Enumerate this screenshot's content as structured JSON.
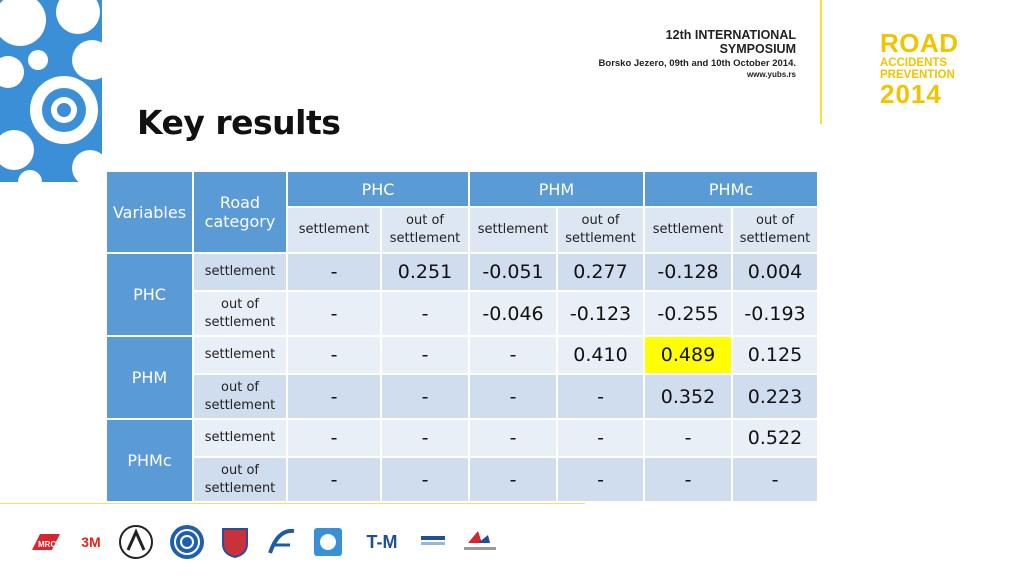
{
  "header": {
    "symposium_line1": "12th INTERNATIONAL",
    "symposium_line2": "SYMPOSIUM",
    "symposium_line3": "Borsko Jezero, 09th and 10th October 2014.",
    "symposium_line4": "www.yubs.rs",
    "brand_line1": "ROAD",
    "brand_line2": "ACCIDENTS",
    "brand_line3": "PREVENTION",
    "brand_line4": "2014"
  },
  "title": "Key results",
  "table": {
    "col_variables": "Variables",
    "col_road_category": "Road category",
    "groups": [
      "PHC",
      "PHM",
      "PHMc"
    ],
    "subheaders": [
      "settlement",
      "out of settlement",
      "settlement",
      "out of settlement",
      "settlement",
      "out of settlement"
    ],
    "rows": [
      {
        "variable": "PHC",
        "category": "settlement",
        "values": [
          "-",
          "0.251",
          "-0.051",
          "0.277",
          "-0.128",
          "0.004"
        ]
      },
      {
        "variable": "",
        "category": "out of settlement",
        "values": [
          "-",
          "-",
          "-0.046",
          "-0.123",
          "-0.255",
          "-0.193"
        ]
      },
      {
        "variable": "PHM",
        "category": "settlement",
        "values": [
          "-",
          "-",
          "-",
          "0.410",
          "0.489",
          "0.125"
        ]
      },
      {
        "variable": "",
        "category": "out of settlement",
        "values": [
          "-",
          "-",
          "-",
          "-",
          "0.352",
          "0.223"
        ]
      },
      {
        "variable": "PHMc",
        "category": "settlement",
        "values": [
          "-",
          "-",
          "-",
          "-",
          "-",
          "0.522"
        ]
      },
      {
        "variable": "",
        "category": "out of settlement",
        "values": [
          "-",
          "-",
          "-",
          "-",
          "-",
          "-"
        ]
      }
    ],
    "highlight_color": "#ffff00"
  },
  "logos": [
    "MRC",
    "3M",
    "sponsor-logo-3",
    "sponsor-logo-4",
    "sponsor-logo-5",
    "sponsor-logo-6",
    "sponsor-logo-7",
    "T-M",
    "sponsor-logo-9",
    "sponsor-logo-10"
  ]
}
